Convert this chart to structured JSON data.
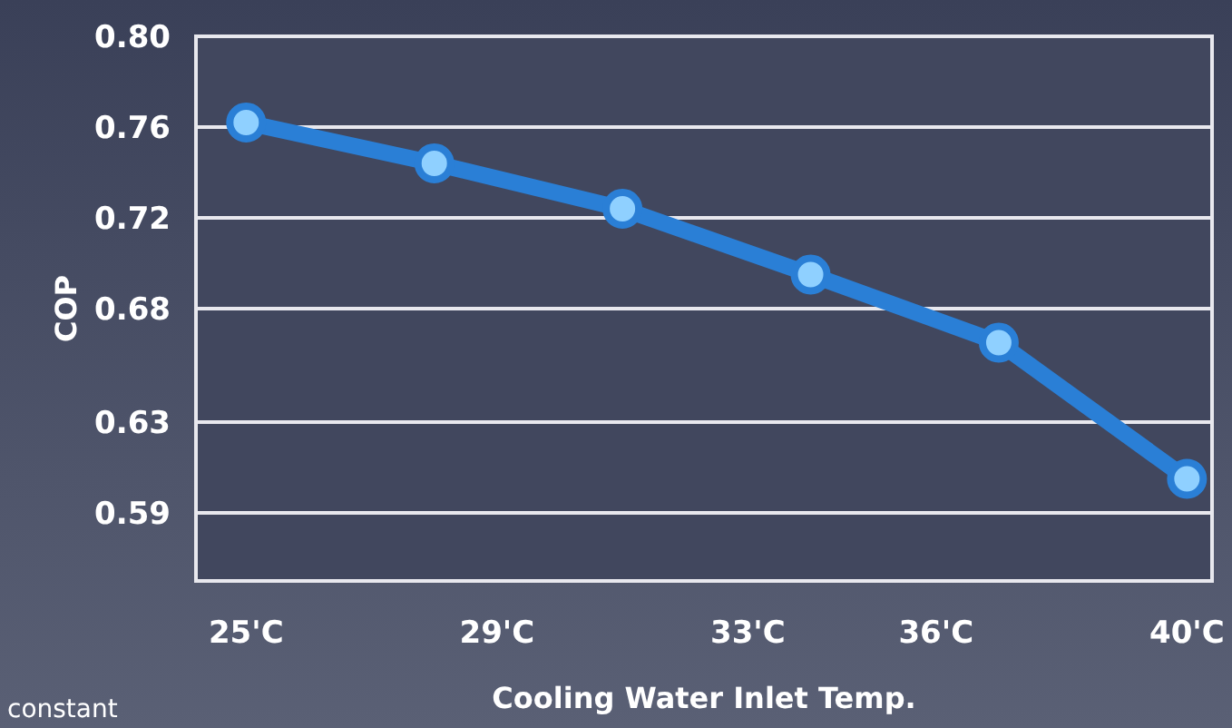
{
  "chart_data": {
    "type": "line",
    "xlabel": "Cooling Water Inlet Temp.",
    "ylabel": "COP",
    "x": [
      25,
      28,
      31,
      34,
      37,
      40
    ],
    "series": [
      {
        "color": "#2a7fd6",
        "values": [
          0.762,
          0.744,
          0.724,
          0.695,
          0.665,
          0.605
        ]
      }
    ],
    "xlim": [
      24.2,
      40.4
    ],
    "xticks": [
      {
        "value": 25,
        "label": "25'C"
      },
      {
        "value": 29,
        "label": "29'C"
      },
      {
        "value": 33,
        "label": "33'C"
      },
      {
        "value": 36,
        "label": "36'C"
      },
      {
        "value": 40,
        "label": "40'C"
      }
    ],
    "ylim": [
      0.56,
      0.8
    ],
    "yticks": [
      {
        "value": 0.8,
        "label": "0.80"
      },
      0.76,
      0.72,
      0.68,
      0.63,
      0.59
    ],
    "grid": "y",
    "marker": "circle",
    "line_style": "solid",
    "annotations": [
      "constant"
    ]
  }
}
